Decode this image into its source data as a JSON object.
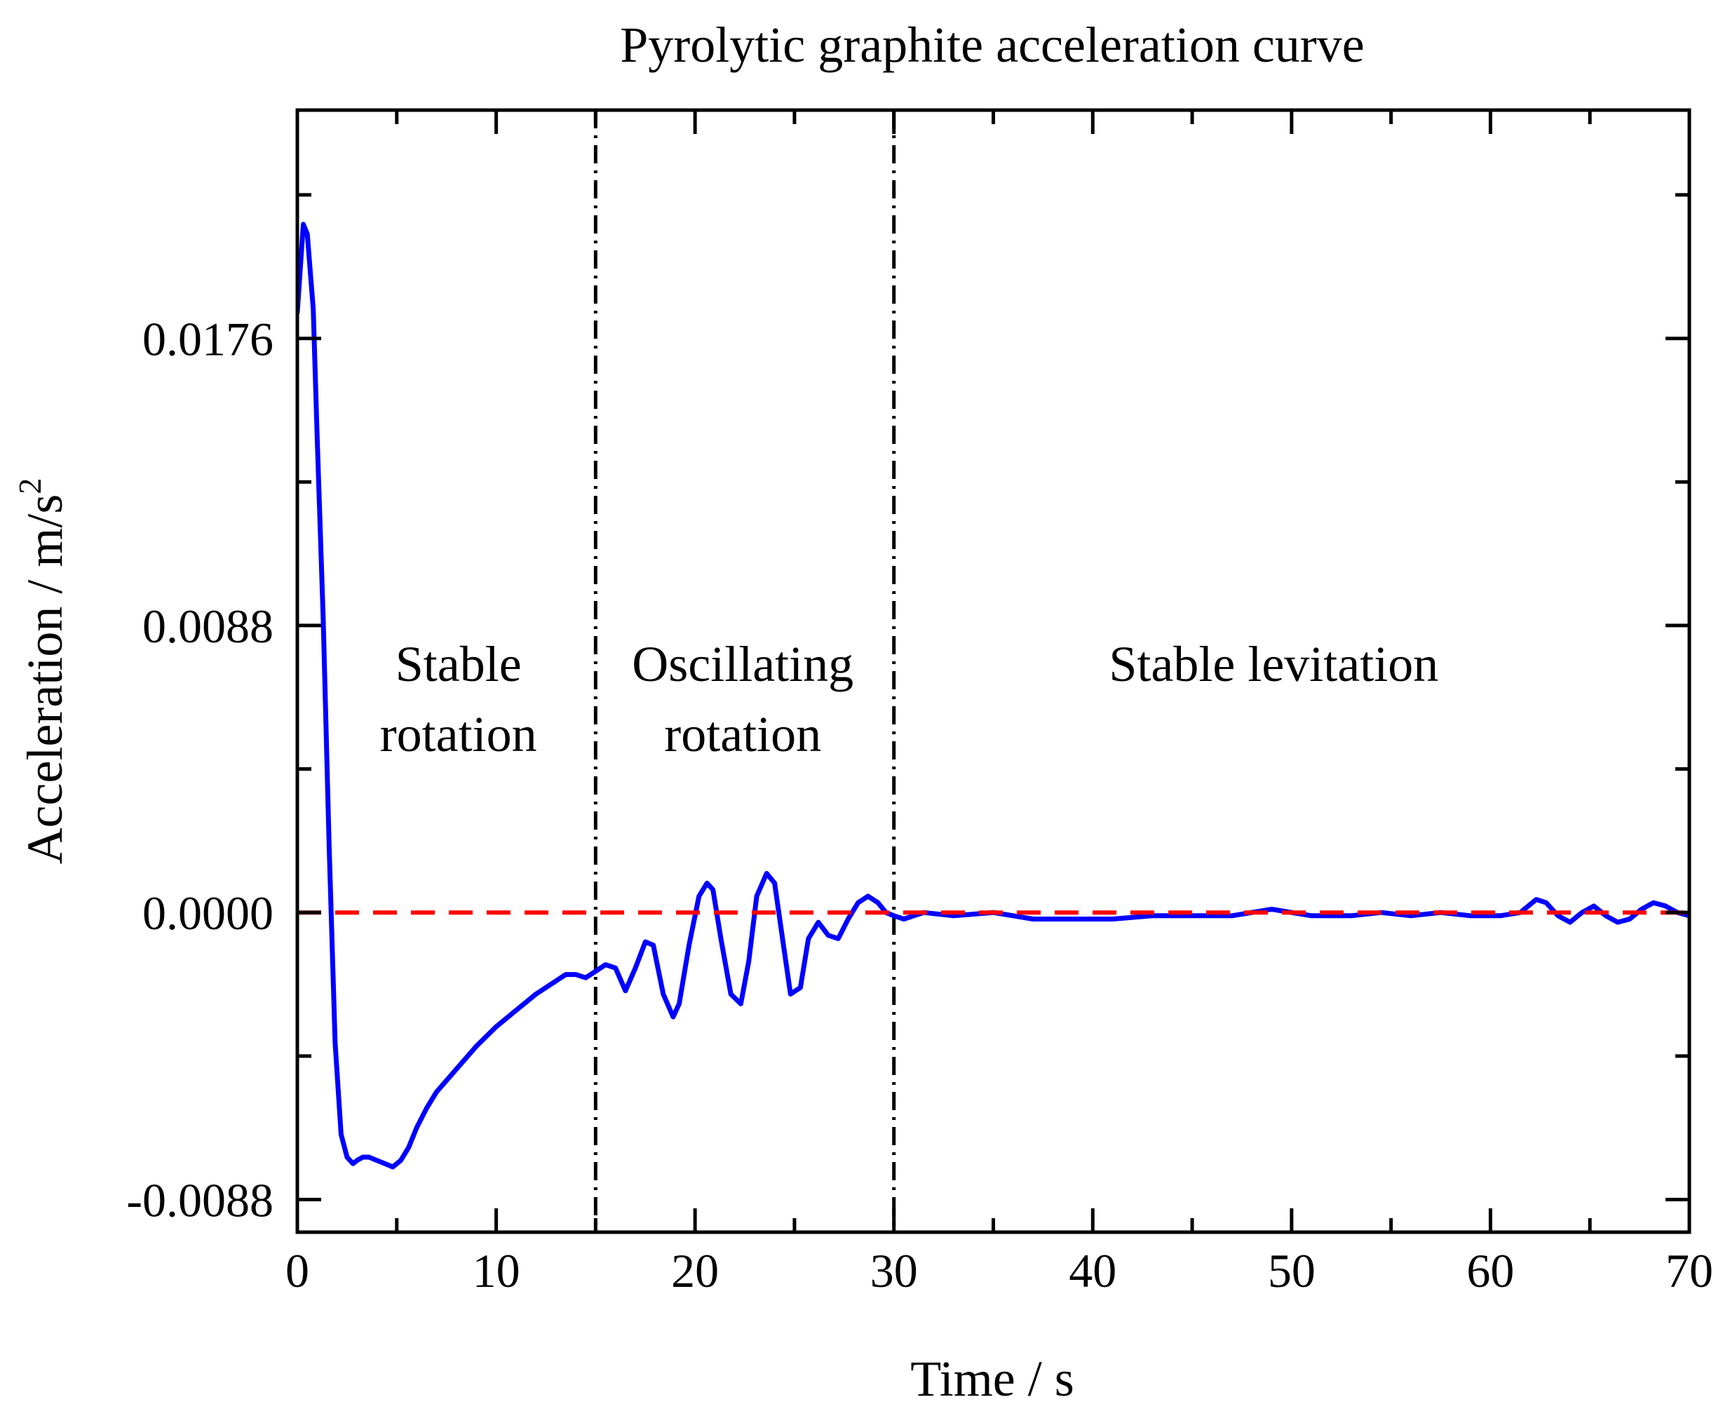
{
  "chart_data": {
    "type": "line",
    "title": "Pyrolytic graphite acceleration curve",
    "xlabel": "Time / s",
    "ylabel": "Acceleration / m/s",
    "ylabel_superscript": "2",
    "xlim": [
      0,
      70
    ],
    "ylim": [
      -0.0098,
      0.0246
    ],
    "xticks": [
      0,
      10,
      20,
      30,
      40,
      50,
      60,
      70
    ],
    "xtick_labels": [
      "0",
      "10",
      "20",
      "30",
      "40",
      "50",
      "60",
      "70"
    ],
    "yticks": [
      -0.0088,
      0.0,
      0.0088,
      0.0176
    ],
    "ytick_labels": [
      "-0.0088",
      "0.0000",
      "0.0088",
      "0.0176"
    ],
    "grid": false,
    "series": [
      {
        "name": "acceleration",
        "color": "#0000ff",
        "x": [
          0,
          0.3,
          0.5,
          0.8,
          1.0,
          1.3,
          1.6,
          1.9,
          2.2,
          2.5,
          2.8,
          3.0,
          3.3,
          3.6,
          4.0,
          4.4,
          4.8,
          5.2,
          5.6,
          6.0,
          6.5,
          7.0,
          8.0,
          9.0,
          10.0,
          11.0,
          12.0,
          13.0,
          13.5,
          14.0,
          14.5,
          15.0,
          15.5,
          16.0,
          16.5,
          17.0,
          17.5,
          17.9,
          18.4,
          18.9,
          19.2,
          19.7,
          20.2,
          20.6,
          20.9,
          21.3,
          21.8,
          22.3,
          22.7,
          23.1,
          23.6,
          24.0,
          24.4,
          24.8,
          25.3,
          25.7,
          26.2,
          26.7,
          27.2,
          27.7,
          28.2,
          28.7,
          29.2,
          29.6,
          30.0,
          30.5,
          31.0,
          31.5,
          33,
          35,
          37,
          39,
          41,
          43,
          45,
          47,
          49,
          51,
          53,
          54.5,
          56,
          57.5,
          59,
          60.5,
          61.5,
          62.3,
          62.8,
          63.4,
          64,
          64.6,
          65.2,
          65.8,
          66.4,
          67,
          67.6,
          68.2,
          68.8,
          69.4,
          70
        ],
        "values": [
          0.0184,
          0.0211,
          0.0208,
          0.0185,
          0.0145,
          0.009,
          0.002,
          -0.004,
          -0.0068,
          -0.0075,
          -0.0077,
          -0.0076,
          -0.0075,
          -0.0075,
          -0.0076,
          -0.0077,
          -0.0078,
          -0.0076,
          -0.0072,
          -0.0066,
          -0.006,
          -0.0055,
          -0.0048,
          -0.0041,
          -0.0035,
          -0.003,
          -0.0025,
          -0.0021,
          -0.0019,
          -0.0019,
          -0.002,
          -0.0018,
          -0.0016,
          -0.0017,
          -0.0024,
          -0.0017,
          -0.0009,
          -0.001,
          -0.0025,
          -0.0032,
          -0.0028,
          -0.001,
          0.0005,
          0.0009,
          0.0007,
          -0.0008,
          -0.0025,
          -0.0028,
          -0.0015,
          0.0005,
          0.0012,
          0.0009,
          -0.0008,
          -0.0025,
          -0.0023,
          -0.0008,
          -0.0003,
          -0.0007,
          -0.0008,
          -0.0002,
          0.0003,
          0.0005,
          0.0003,
          0.0,
          -0.0001,
          -0.0002,
          -0.0001,
          0.0,
          -0.0001,
          0.0,
          -0.0002,
          -0.0002,
          -0.0002,
          -0.0001,
          -0.0001,
          -0.0001,
          0.0001,
          -0.0001,
          -0.0001,
          0.0,
          -0.0001,
          0.0,
          -0.0001,
          -0.0001,
          0.0,
          0.0004,
          0.0003,
          -0.0001,
          -0.0003,
          0.0,
          0.0002,
          -0.0001,
          -0.0003,
          -0.0002,
          0.0001,
          0.0003,
          0.0002,
          0.0,
          -0.0001
        ]
      },
      {
        "name": "zero line",
        "color": "#ff0000",
        "style": "dashed",
        "x": [
          0,
          70
        ],
        "values": [
          0,
          0
        ]
      }
    ],
    "vlines": [
      {
        "x": 15,
        "style": "dash-dot",
        "color": "#000000"
      },
      {
        "x": 30,
        "style": "dash-dot",
        "color": "#000000"
      }
    ],
    "annotations": [
      {
        "lines": [
          "Stable",
          "rotation"
        ],
        "x": 8.1,
        "y": 0.0071
      },
      {
        "lines": [
          "Oscillating",
          "rotation"
        ],
        "x": 22.4,
        "y": 0.0071
      },
      {
        "lines": [
          "Stable levitation"
        ],
        "x": 49.1,
        "y": 0.0071
      }
    ]
  }
}
